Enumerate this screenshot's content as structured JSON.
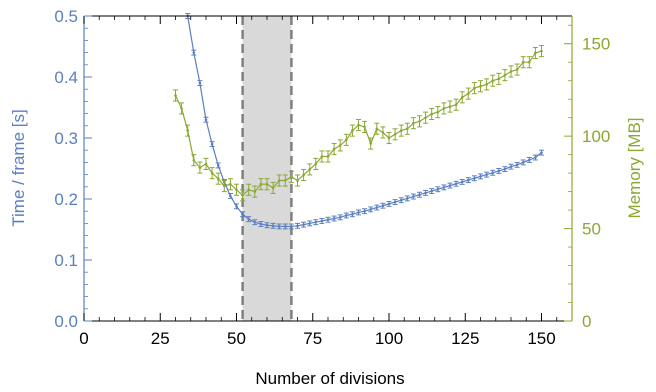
{
  "chart_data": {
    "type": "line",
    "title": "",
    "xlabel": "Number of divisions",
    "ylabel_left": "Time / frame [s]",
    "ylabel_right": "Memory [MB]",
    "xlim": [
      0,
      160
    ],
    "ylim_left": [
      0,
      0.5
    ],
    "ylim_right": [
      0,
      165
    ],
    "x_ticks": [
      0,
      25,
      50,
      75,
      100,
      125,
      150
    ],
    "y_left_ticks": [
      0.0,
      0.1,
      0.2,
      0.3,
      0.4,
      0.5
    ],
    "y_left_tick_labels": [
      "0.0",
      "0.1",
      "0.2",
      "0.3",
      "0.4",
      "0.5"
    ],
    "y_right_ticks": [
      0,
      50,
      100,
      150
    ],
    "grid": false,
    "legend": "none",
    "highlight_band": {
      "x_start": 52,
      "x_end": 68
    },
    "colors": {
      "time": "#5b7fc0",
      "memory": "#8aa832",
      "band": "#d9d9d9",
      "band_edge": "#808080",
      "axis": "#000000"
    },
    "series": [
      {
        "axis": "left",
        "color": "#5b7fc0",
        "x": [
          34,
          36,
          38,
          40,
          42,
          44,
          46,
          48,
          50,
          52,
          54,
          56,
          58,
          60,
          62,
          64,
          66,
          68,
          70,
          72,
          74,
          76,
          78,
          80,
          82,
          84,
          86,
          88,
          90,
          92,
          94,
          96,
          98,
          100,
          102,
          104,
          106,
          108,
          110,
          112,
          114,
          116,
          118,
          120,
          122,
          124,
          126,
          128,
          130,
          132,
          134,
          136,
          138,
          140,
          142,
          144,
          146,
          148,
          150
        ],
        "values": [
          0.5,
          0.44,
          0.39,
          0.33,
          0.29,
          0.255,
          0.228,
          0.205,
          0.188,
          0.175,
          0.167,
          0.162,
          0.159,
          0.157,
          0.156,
          0.155,
          0.155,
          0.155,
          0.156,
          0.158,
          0.16,
          0.162,
          0.164,
          0.166,
          0.168,
          0.17,
          0.173,
          0.175,
          0.178,
          0.18,
          0.183,
          0.186,
          0.189,
          0.192,
          0.195,
          0.198,
          0.201,
          0.204,
          0.207,
          0.21,
          0.213,
          0.216,
          0.219,
          0.222,
          0.225,
          0.228,
          0.231,
          0.234,
          0.237,
          0.24,
          0.243,
          0.246,
          0.249,
          0.253,
          0.256,
          0.26,
          0.264,
          0.268,
          0.276
        ],
        "error": 0.004
      },
      {
        "axis": "right",
        "color": "#8aa832",
        "x": [
          30,
          32,
          34,
          36,
          38,
          40,
          42,
          44,
          46,
          48,
          50,
          52,
          54,
          56,
          58,
          60,
          62,
          64,
          66,
          68,
          70,
          72,
          74,
          76,
          78,
          80,
          82,
          84,
          86,
          88,
          90,
          92,
          94,
          96,
          98,
          100,
          102,
          104,
          106,
          108,
          110,
          112,
          114,
          116,
          118,
          120,
          122,
          124,
          126,
          128,
          130,
          132,
          134,
          136,
          138,
          140,
          142,
          144,
          146,
          148,
          150
        ],
        "values": [
          122,
          115,
          103,
          87,
          83,
          85,
          80,
          77,
          73,
          74,
          71,
          68,
          71,
          70,
          74,
          74,
          72,
          76,
          76,
          78,
          76,
          79,
          82,
          85,
          89,
          89,
          93,
          95,
          98,
          103,
          106,
          105,
          96,
          104,
          102,
          99,
          101,
          103,
          104,
          107,
          108,
          110,
          112,
          113,
          115,
          116,
          117,
          121,
          123,
          126,
          127,
          128,
          130,
          131,
          133,
          135,
          136,
          140,
          140,
          145,
          146
        ],
        "error": 3
      }
    ]
  }
}
